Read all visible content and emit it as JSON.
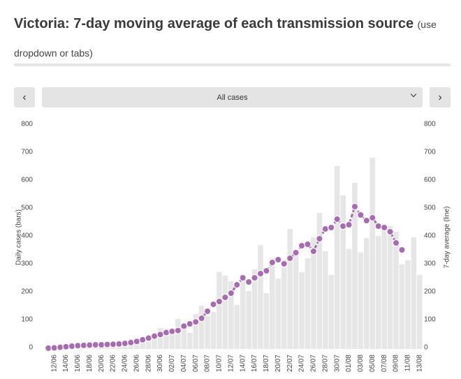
{
  "controls": {
    "prev": "‹",
    "dropdown": "All cases",
    "next": "›"
  },
  "chart_data": {
    "type": "bar",
    "title": "Victoria: 7-day moving average of each transmission source",
    "subtitle": "(use dropdown or tabs)",
    "y_label": "Daily cases (bars)",
    "y2_label": "7-day average (line)",
    "categories": [
      null,
      "12/06",
      null,
      "14/06",
      null,
      "16/06",
      null,
      "18/06",
      null,
      "20/06",
      null,
      "22/06",
      null,
      "24/06",
      null,
      "26/06",
      null,
      "28/06",
      null,
      "30/06",
      null,
      "02/07",
      null,
      "04/07",
      null,
      "06/07",
      null,
      "08/07",
      null,
      "10/07",
      null,
      "12/07",
      null,
      "14/07",
      null,
      "16/07",
      null,
      "18/07",
      null,
      "20/07",
      null,
      "22/07",
      null,
      "24/07",
      null,
      "26/07",
      null,
      "28/07",
      null,
      "30/07",
      null,
      "01/08",
      null,
      "03/08",
      null,
      "05/08",
      null,
      "07/08",
      null,
      "09/08",
      null,
      "11/08",
      null,
      "13/08"
    ],
    "series": [
      {
        "name": "Daily cases",
        "type": "bar",
        "color": "#e6e6e6",
        "values": [
          8,
          5,
          11,
          15,
          20,
          21,
          18,
          20,
          13,
          25,
          20,
          14,
          19,
          16,
          17,
          41,
          30,
          37,
          41,
          75,
          73,
          66,
          108,
          85,
          58,
          125,
          155,
          118,
          133,
          276,
          263,
          243,
          158,
          250,
          208,
          285,
          372,
          200,
          325,
          252,
          320,
          430,
          355,
          275,
          325,
          400,
          487,
          350,
          265,
          655,
          550,
          358,
          595,
          346,
          397,
          685,
          405,
          430,
          440,
          420,
          303,
          318,
          400,
          266
        ]
      },
      {
        "name": "7-day average",
        "type": "line",
        "axis": "y2",
        "color": "#a66bb0",
        "values": [
          3,
          4,
          6,
          8,
          10,
          12,
          13,
          14,
          15,
          15,
          16,
          17,
          18,
          20,
          23,
          27,
          33,
          39,
          46,
          52,
          59,
          63,
          66,
          82,
          90,
          97,
          110,
          135,
          160,
          170,
          185,
          200,
          230,
          255,
          240,
          255,
          270,
          280,
          310,
          320,
          305,
          325,
          345,
          370,
          375,
          350,
          395,
          430,
          435,
          465,
          440,
          445,
          510,
          480,
          460,
          470,
          440,
          435,
          420,
          380,
          355,
          null,
          null,
          null
        ]
      }
    ],
    "ylim": [
      0,
      800
    ],
    "yticks": [
      0,
      100,
      200,
      300,
      400,
      500,
      600,
      700,
      800
    ],
    "y2lim": [
      0,
      800
    ],
    "y2ticks": [
      0,
      100,
      200,
      300,
      400,
      500,
      600,
      700,
      800
    ]
  }
}
